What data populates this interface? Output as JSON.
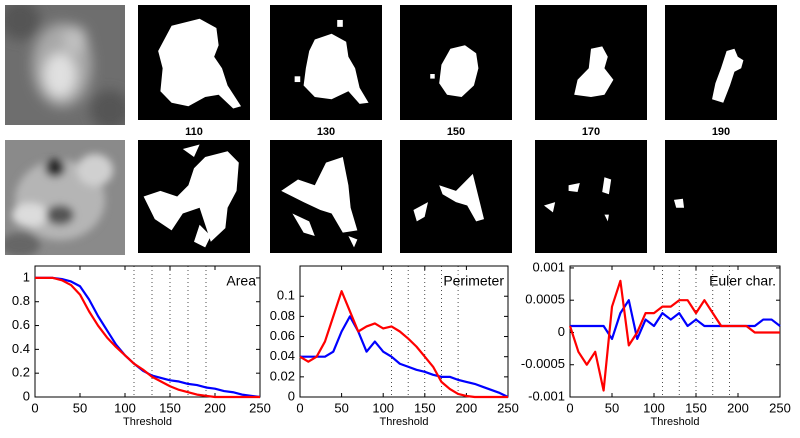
{
  "thresholds": [
    110,
    130,
    150,
    170,
    190
  ],
  "chart_data": [
    {
      "type": "line",
      "title": "Area",
      "xlabel": "Threshold",
      "x": [
        0,
        10,
        20,
        30,
        40,
        50,
        60,
        70,
        80,
        90,
        100,
        110,
        120,
        130,
        140,
        150,
        160,
        170,
        180,
        190,
        200,
        210,
        220,
        230,
        240,
        250
      ],
      "series": [
        {
          "color": "#0000ff",
          "values": [
            1,
            1,
            1,
            0.99,
            0.97,
            0.93,
            0.82,
            0.68,
            0.56,
            0.44,
            0.35,
            0.28,
            0.22,
            0.18,
            0.16,
            0.14,
            0.13,
            0.11,
            0.1,
            0.08,
            0.07,
            0.05,
            0.04,
            0.02,
            0.01,
            0
          ]
        },
        {
          "color": "#ff0000",
          "values": [
            1,
            1,
            1,
            0.98,
            0.94,
            0.86,
            0.72,
            0.6,
            0.5,
            0.42,
            0.35,
            0.28,
            0.23,
            0.17,
            0.13,
            0.09,
            0.06,
            0.04,
            0.02,
            0.01,
            0,
            0,
            0,
            0,
            0,
            0
          ]
        }
      ],
      "xlim": [
        0,
        250
      ],
      "xticks": [
        0,
        50,
        100,
        150,
        200,
        250
      ],
      "ylim": [
        0,
        1.1
      ],
      "yticks": [
        0,
        0.2,
        0.4,
        0.6,
        0.8,
        1
      ],
      "vlines": [
        110,
        130,
        150,
        170,
        190
      ]
    },
    {
      "type": "line",
      "title": "Perimeter",
      "xlabel": "Threshold",
      "x": [
        0,
        10,
        20,
        30,
        40,
        50,
        60,
        70,
        80,
        90,
        100,
        110,
        120,
        130,
        140,
        150,
        160,
        170,
        180,
        190,
        200,
        210,
        220,
        230,
        240,
        250
      ],
      "series": [
        {
          "color": "#0000ff",
          "values": [
            0.04,
            0.04,
            0.04,
            0.04,
            0.045,
            0.065,
            0.08,
            0.065,
            0.045,
            0.055,
            0.045,
            0.04,
            0.033,
            0.03,
            0.027,
            0.025,
            0.022,
            0.02,
            0.02,
            0.017,
            0.015,
            0.013,
            0.01,
            0.007,
            0.004,
            0
          ]
        },
        {
          "color": "#ff0000",
          "values": [
            0.04,
            0.035,
            0.04,
            0.055,
            0.08,
            0.105,
            0.085,
            0.065,
            0.07,
            0.073,
            0.068,
            0.07,
            0.065,
            0.058,
            0.05,
            0.04,
            0.03,
            0.015,
            0.008,
            0.003,
            0.001,
            0,
            0,
            0,
            0,
            0
          ]
        }
      ],
      "xlim": [
        0,
        250
      ],
      "xticks": [
        0,
        50,
        100,
        150,
        200,
        250
      ],
      "ylim": [
        0,
        0.13
      ],
      "yticks": [
        0,
        0.02,
        0.04,
        0.06,
        0.08,
        0.1
      ],
      "vlines": [
        110,
        130,
        150,
        170,
        190
      ]
    },
    {
      "type": "line",
      "title": "Euler char.",
      "xlabel": "Threshold",
      "x": [
        0,
        10,
        20,
        30,
        40,
        50,
        60,
        70,
        80,
        90,
        100,
        110,
        120,
        130,
        140,
        150,
        160,
        170,
        180,
        190,
        200,
        210,
        220,
        230,
        240,
        250
      ],
      "series": [
        {
          "color": "#0000ff",
          "values": [
            0.0001,
            0.0001,
            0.0001,
            0.0001,
            0.0001,
            -0.0001,
            0.0003,
            0.0005,
            -0.0001,
            0.0002,
            0.0001,
            0.0003,
            0.0002,
            0.0003,
            0.0001,
            0.0002,
            0.0001,
            0.0001,
            0.0001,
            0.0001,
            0.0001,
            0.0001,
            0.0001,
            0.0002,
            0.0002,
            0.0001
          ]
        },
        {
          "color": "#ff0000",
          "values": [
            0.0001,
            -0.0003,
            -0.0005,
            -0.0003,
            -0.0009,
            0.0004,
            0.0008,
            -0.0002,
            0,
            0.0003,
            0.0003,
            0.0004,
            0.0004,
            0.0005,
            0.0005,
            0.0003,
            0.0005,
            0.0003,
            0.0001,
            0.0001,
            0.0001,
            0.0001,
            0,
            0,
            0,
            0
          ]
        }
      ],
      "xlim": [
        0,
        250
      ],
      "xticks": [
        0,
        50,
        100,
        150,
        200,
        250
      ],
      "ylim": [
        -0.001,
        0.00103
      ],
      "yticks": [
        -0.001,
        -0.0005,
        0,
        0.0005,
        0.001
      ],
      "vlines": [
        110,
        130,
        150,
        170,
        190
      ]
    }
  ]
}
